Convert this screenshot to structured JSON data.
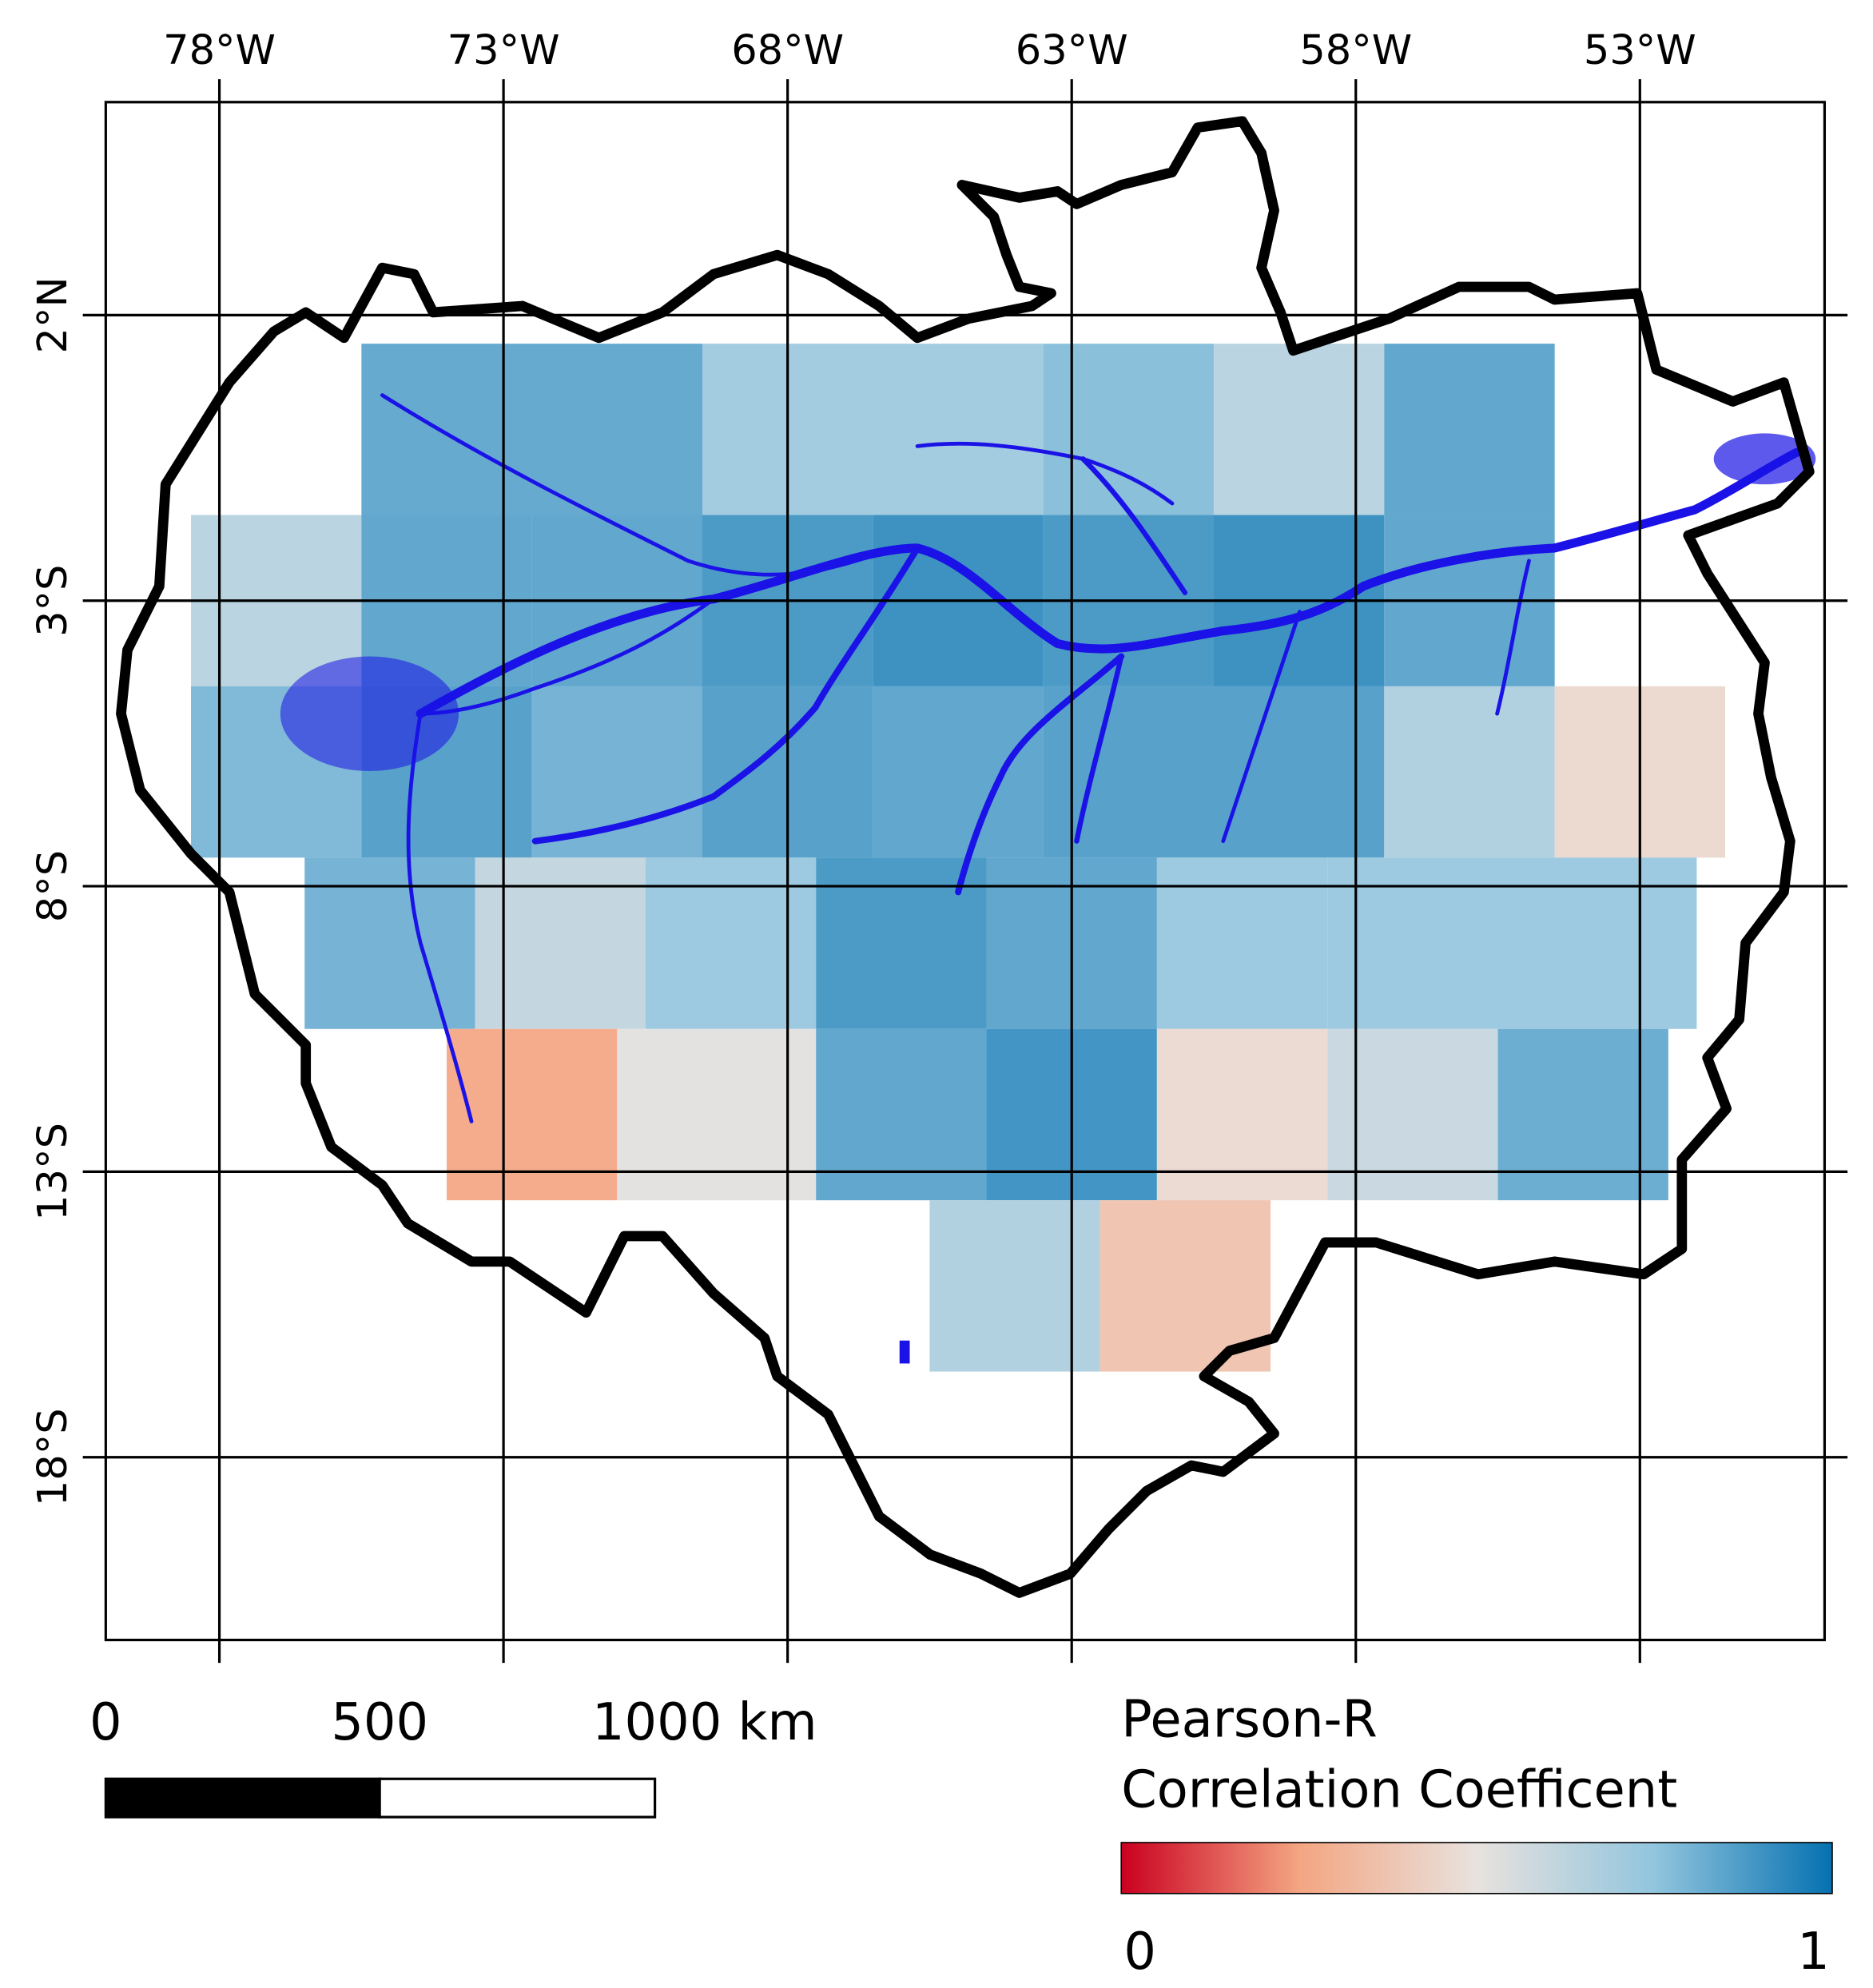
{
  "map": {
    "lonlim": [
      -80,
      -49.75
    ],
    "latlim": [
      -21.2,
      5.73
    ],
    "lon_ticks": [
      {
        "value": -78,
        "label": "78°W"
      },
      {
        "value": -73,
        "label": "73°W"
      },
      {
        "value": -68,
        "label": "68°W"
      },
      {
        "value": -63,
        "label": "63°W"
      },
      {
        "value": -58,
        "label": "58°W"
      },
      {
        "value": -53,
        "label": "53°W"
      }
    ],
    "lat_ticks": [
      {
        "value": 2,
        "label": "2°N"
      },
      {
        "value": -3,
        "label": "3°S"
      },
      {
        "value": -8,
        "label": "8°S"
      },
      {
        "value": -13,
        "label": "13°S"
      },
      {
        "value": -18,
        "label": "18°S"
      }
    ],
    "grid": true,
    "tiles": [
      {
        "lon": [
          -75.5,
          -69.5
        ],
        "lat": [
          -1.5,
          1.5
        ],
        "value": 0.85
      },
      {
        "lon": [
          -69.5,
          -63.5
        ],
        "lat": [
          -1.5,
          1.5
        ],
        "value": 0.72
      },
      {
        "lon": [
          -63.5,
          -60.5
        ],
        "lat": [
          -1.5,
          1.5
        ],
        "value": 0.78
      },
      {
        "lon": [
          -60.5,
          -57.5
        ],
        "lat": [
          -1.5,
          1.5
        ],
        "value": 0.65
      },
      {
        "lon": [
          -57.5,
          -54.5
        ],
        "lat": [
          -1.5,
          1.5
        ],
        "value": 0.86
      },
      {
        "lon": [
          -78.5,
          -75.5
        ],
        "lat": [
          -4.5,
          -1.5
        ],
        "value": 0.65
      },
      {
        "lon": [
          -75.5,
          -72.5
        ],
        "lat": [
          -4.5,
          -1.5
        ],
        "value": 0.86
      },
      {
        "lon": [
          -72.5,
          -69.5
        ],
        "lat": [
          -4.5,
          -1.5
        ],
        "value": 0.86
      },
      {
        "lon": [
          -69.5,
          -66.5
        ],
        "lat": [
          -4.5,
          -1.5
        ],
        "value": 0.9
      },
      {
        "lon": [
          -66.5,
          -63.5
        ],
        "lat": [
          -4.5,
          -1.5
        ],
        "value": 0.93
      },
      {
        "lon": [
          -63.5,
          -60.5
        ],
        "lat": [
          -4.5,
          -1.5
        ],
        "value": 0.9
      },
      {
        "lon": [
          -60.5,
          -57.5
        ],
        "lat": [
          -4.5,
          -1.5
        ],
        "value": 0.93
      },
      {
        "lon": [
          -57.5,
          -54.5
        ],
        "lat": [
          -4.5,
          -1.5
        ],
        "value": 0.86
      },
      {
        "lon": [
          -78.5,
          -75.5
        ],
        "lat": [
          -7.5,
          -4.5
        ],
        "value": 0.8
      },
      {
        "lon": [
          -75.5,
          -72.5
        ],
        "lat": [
          -7.5,
          -4.5
        ],
        "value": 0.88
      },
      {
        "lon": [
          -72.5,
          -69.5
        ],
        "lat": [
          -7.5,
          -4.5
        ],
        "value": 0.82
      },
      {
        "lon": [
          -69.5,
          -66.5
        ],
        "lat": [
          -7.5,
          -4.5
        ],
        "value": 0.88
      },
      {
        "lon": [
          -66.5,
          -63.5
        ],
        "lat": [
          -7.5,
          -4.5
        ],
        "value": 0.86
      },
      {
        "lon": [
          -63.5,
          -60.5
        ],
        "lat": [
          -7.5,
          -4.5
        ],
        "value": 0.88
      },
      {
        "lon": [
          -60.5,
          -57.5
        ],
        "lat": [
          -7.5,
          -4.5
        ],
        "value": 0.88
      },
      {
        "lon": [
          -57.5,
          -54.5
        ],
        "lat": [
          -7.5,
          -4.5
        ],
        "value": 0.68
      },
      {
        "lon": [
          -54.5,
          -51.5
        ],
        "lat": [
          -7.5,
          -4.5
        ],
        "value": 0.45
      },
      {
        "lon": [
          -76.5,
          -73.5
        ],
        "lat": [
          -10.5,
          -7.5
        ],
        "value": 0.82
      },
      {
        "lon": [
          -73.5,
          -70.5
        ],
        "lat": [
          -10.5,
          -7.5
        ],
        "value": 0.62
      },
      {
        "lon": [
          -70.5,
          -67.5
        ],
        "lat": [
          -10.5,
          -7.5
        ],
        "value": 0.74
      },
      {
        "lon": [
          -67.5,
          -64.5
        ],
        "lat": [
          -10.5,
          -7.5
        ],
        "value": 0.9
      },
      {
        "lon": [
          -64.5,
          -61.5
        ],
        "lat": [
          -10.5,
          -7.5
        ],
        "value": 0.86
      },
      {
        "lon": [
          -61.5,
          -58.5
        ],
        "lat": [
          -10.5,
          -7.5
        ],
        "value": 0.74
      },
      {
        "lon": [
          -58.5,
          -55.5
        ],
        "lat": [
          -10.5,
          -7.5
        ],
        "value": 0.74
      },
      {
        "lon": [
          -55.5,
          -52
        ],
        "lat": [
          -10.5,
          -7.5
        ],
        "value": 0.74
      },
      {
        "lon": [
          -74,
          -71
        ],
        "lat": [
          -13.5,
          -10.5
        ],
        "value": 0.25
      },
      {
        "lon": [
          -71,
          -67.5
        ],
        "lat": [
          -13.5,
          -10.5
        ],
        "value": 0.52
      },
      {
        "lon": [
          -67.5,
          -64.5
        ],
        "lat": [
          -13.5,
          -10.5
        ],
        "value": 0.86
      },
      {
        "lon": [
          -64.5,
          -61.5
        ],
        "lat": [
          -13.5,
          -10.5
        ],
        "value": 0.92
      },
      {
        "lon": [
          -61.5,
          -58.5
        ],
        "lat": [
          -13.5,
          -10.5
        ],
        "value": 0.46
      },
      {
        "lon": [
          -58.5,
          -55.5
        ],
        "lat": [
          -13.5,
          -10.5
        ],
        "value": 0.6
      },
      {
        "lon": [
          -55.5,
          -52.5
        ],
        "lat": [
          -13.5,
          -10.5
        ],
        "value": 0.84
      },
      {
        "lon": [
          -65.5,
          -62.5
        ],
        "lat": [
          -16.5,
          -13.5
        ],
        "value": 0.68
      },
      {
        "lon": [
          -62.5,
          -59.5
        ],
        "lat": [
          -16.5,
          -13.5
        ],
        "value": 0.36
      }
    ],
    "colormap": [
      "#ca0020",
      "#f4a582",
      "#e8e2de",
      "#92c5de",
      "#0571b0"
    ],
    "scale_bar": {
      "labels": [
        "0",
        "500",
        "1000 km"
      ]
    },
    "legend": {
      "title": [
        "Pearson-R",
        "Correlation Coefficent"
      ],
      "range": [
        0,
        1
      ],
      "ticks": [
        0,
        1
      ]
    }
  }
}
